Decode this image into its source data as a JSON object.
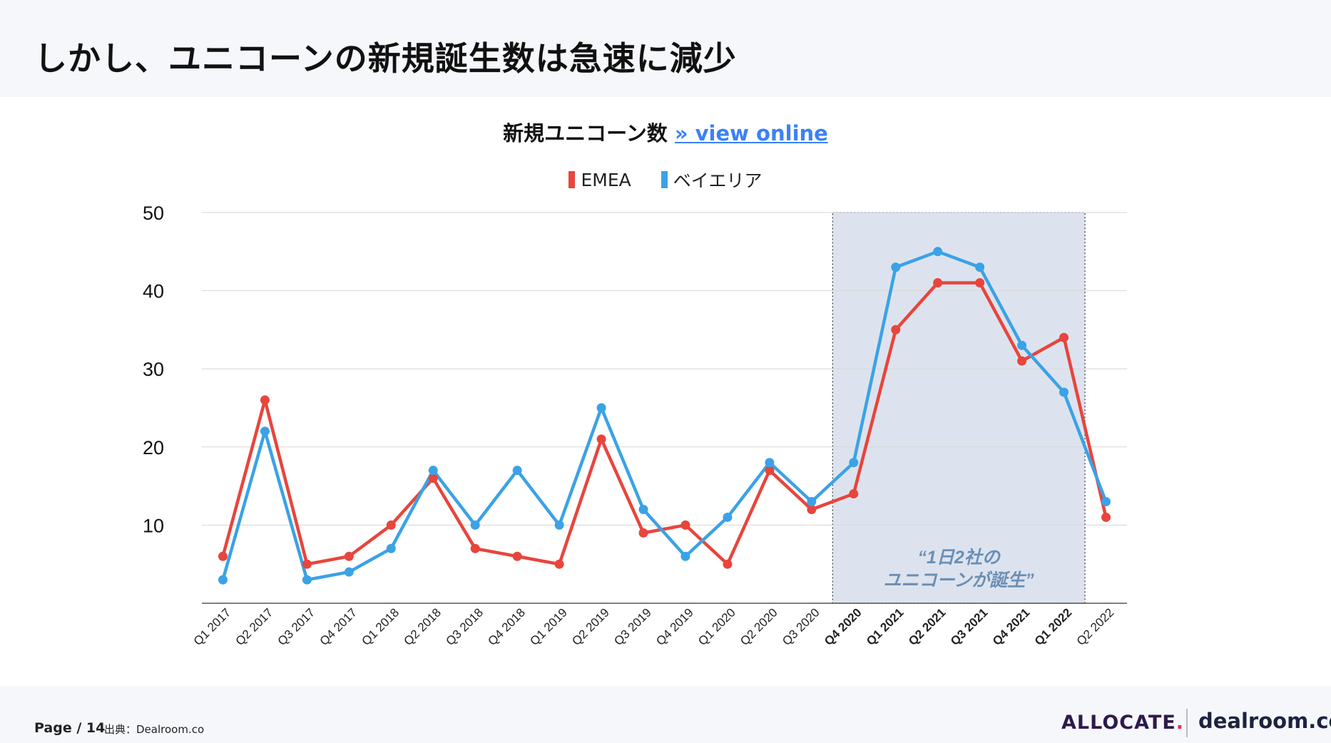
{
  "page": {
    "title": "しかし、ユニコーンの新規誕生数は急速に減少",
    "page_label": "Page / 14",
    "source": "出典：Dealroom.co"
  },
  "logos": {
    "allocate": "ALLOCATE",
    "allocate_dot": ".",
    "dealroom": "dealroom.co"
  },
  "colors": {
    "emea": "#e8453c",
    "bay_area": "#3ba2e6",
    "highlight_fill": "#dde3ee",
    "annotation": "#6b8fb5"
  },
  "chart_data": {
    "type": "line",
    "title": "新規ユニコーン数",
    "title_link": "» view online",
    "categories": [
      "Q1 2017",
      "Q2 2017",
      "Q3 2017",
      "Q4 2017",
      "Q1 2018",
      "Q2 2018",
      "Q3 2018",
      "Q4 2018",
      "Q1 2019",
      "Q2 2019",
      "Q3 2019",
      "Q4 2019",
      "Q1 2020",
      "Q2 2020",
      "Q3 2020",
      "Q4 2020",
      "Q1 2021",
      "Q2 2021",
      "Q3 2021",
      "Q4 2021",
      "Q1 2022",
      "Q2 2022"
    ],
    "bold_categories": [
      "Q4 2020",
      "Q1 2021",
      "Q2 2021",
      "Q3 2021",
      "Q4 2021",
      "Q1 2022"
    ],
    "series": [
      {
        "name": "EMEA",
        "values": [
          6,
          26,
          5,
          6,
          10,
          16,
          7,
          6,
          5,
          21,
          9,
          10,
          5,
          17,
          12,
          14,
          35,
          41,
          41,
          31,
          34,
          11
        ]
      },
      {
        "name": "ベイエリア",
        "values": [
          3,
          22,
          3,
          4,
          7,
          17,
          10,
          17,
          10,
          25,
          12,
          6,
          11,
          18,
          13,
          18,
          43,
          45,
          43,
          33,
          27,
          13
        ]
      }
    ],
    "y_ticks": [
      10,
      20,
      30,
      40,
      50
    ],
    "ylim": [
      0,
      50
    ],
    "grid": true,
    "legend": "top-center",
    "highlight": {
      "from": "Q4 2020",
      "to": "Q1 2022"
    },
    "annotation": [
      "“1日2社の",
      "ユニコーンが誕生”"
    ]
  }
}
